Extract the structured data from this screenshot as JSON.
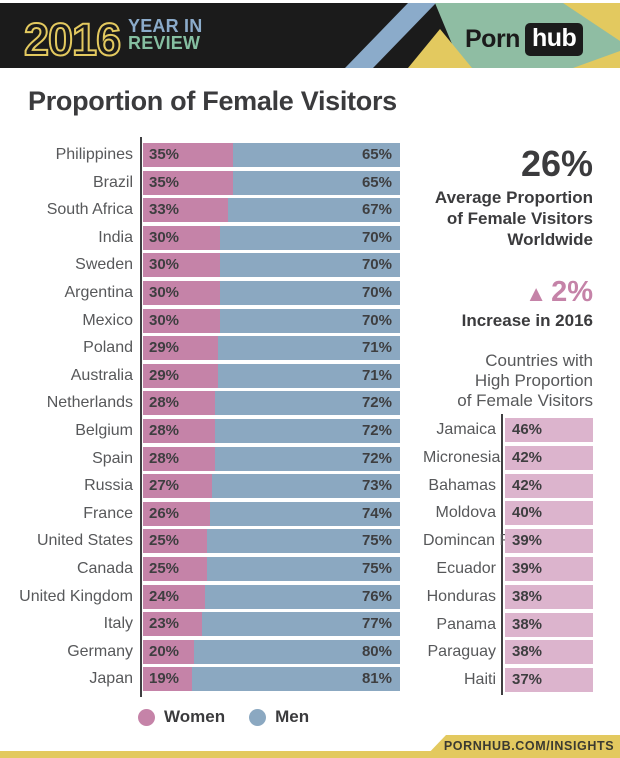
{
  "header": {
    "year": "2016",
    "tagline_line1": "YEAR IN",
    "tagline_line2": "REVIEW",
    "logo": {
      "part1": "Porn",
      "part2": "hub"
    }
  },
  "title": "Proportion of Female Visitors",
  "chart_data": [
    {
      "type": "bar",
      "orientation": "horizontal",
      "stacked": true,
      "title": "Proportion of Female Visitors",
      "categories": [
        "Philippines",
        "Brazil",
        "South Africa",
        "India",
        "Sweden",
        "Argentina",
        "Mexico",
        "Poland",
        "Australia",
        "Netherlands",
        "Belgium",
        "Spain",
        "Russia",
        "France",
        "United States",
        "Canada",
        "United Kingdom",
        "Italy",
        "Germany",
        "Japan"
      ],
      "series": [
        {
          "name": "Women",
          "color": "#c583a8",
          "values": [
            35,
            35,
            33,
            30,
            30,
            30,
            30,
            29,
            29,
            28,
            28,
            28,
            27,
            26,
            25,
            25,
            24,
            23,
            20,
            19
          ]
        },
        {
          "name": "Men",
          "color": "#8ba8c1",
          "values": [
            65,
            65,
            67,
            70,
            70,
            70,
            70,
            71,
            71,
            72,
            72,
            72,
            73,
            74,
            75,
            75,
            76,
            77,
            80,
            81
          ]
        }
      ],
      "value_suffix": "%",
      "xlim": [
        0,
        100
      ],
      "grid": false,
      "legend_position": "bottom"
    },
    {
      "type": "bar",
      "orientation": "horizontal",
      "title_lines": [
        "Countries with",
        "High Proportion",
        "of Female Visitors"
      ],
      "categories": [
        "Jamaica",
        "Micronesia",
        "Bahamas",
        "Moldova",
        "Domincan R.",
        "Ecuador",
        "Honduras",
        "Panama",
        "Paraguay",
        "Haiti"
      ],
      "values": [
        46,
        42,
        42,
        40,
        39,
        39,
        38,
        38,
        38,
        37
      ],
      "value_suffix": "%",
      "bar_color": "#dcb4cd",
      "note": "bars rendered at uniform length, values shown as labels"
    }
  ],
  "stats": {
    "average_value": "26%",
    "average_label": "Average Proportion of Female Visitors Worldwide",
    "increase_arrow_glyph": "▲",
    "increase_value": "2%",
    "increase_label": "Increase in 2016"
  },
  "legend": [
    {
      "label": "Women",
      "color": "#c583a8"
    },
    {
      "label": "Men",
      "color": "#8ba8c1"
    }
  ],
  "footer": {
    "text": "PORNHUB.COM/INSIGHTS"
  },
  "colors": {
    "accent_yellow": "#e3c95f",
    "header_green": "#8fbda3",
    "header_blue": "#8babca",
    "background_dark": "#1b1b1b",
    "text_dark": "#3b3b3d",
    "text_gray": "#57585a",
    "axis": "#3f3f41"
  }
}
